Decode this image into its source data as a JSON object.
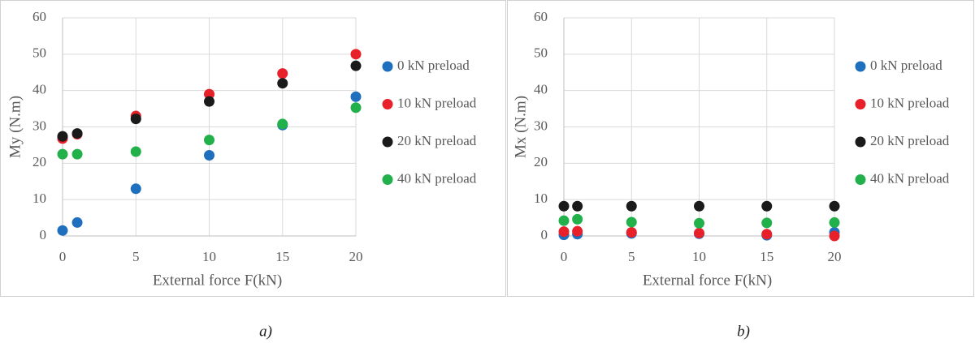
{
  "chart_data": [
    {
      "type": "scatter",
      "caption": "a)",
      "x_label": "External force F(kN)",
      "y_label": "My (N.m)",
      "x": [
        0,
        1,
        5,
        10,
        15,
        20
      ],
      "series": [
        {
          "name": "0 kN preload",
          "color": "#1f6fbf",
          "values": [
            1.5,
            3.7,
            13,
            22.2,
            30.5,
            38.3
          ]
        },
        {
          "name": "10 kN preload",
          "color": "#e8202a",
          "values": [
            26.8,
            28,
            33,
            39,
            44.7,
            50
          ]
        },
        {
          "name": "20 kN preload",
          "color": "#1a1a1a",
          "values": [
            27.4,
            28.2,
            32.2,
            37,
            42,
            46.8
          ]
        },
        {
          "name": "40 kN preload",
          "color": "#22b04b",
          "values": [
            22.5,
            22.5,
            23.2,
            26.4,
            30.8,
            35.3
          ]
        }
      ],
      "xlim": [
        0,
        20
      ],
      "ylim": [
        0,
        60
      ],
      "xticks": [
        0,
        5,
        10,
        15,
        20
      ],
      "yticks": [
        0,
        10,
        20,
        30,
        40,
        50,
        60
      ],
      "grid": true,
      "legend": "right"
    },
    {
      "type": "scatter",
      "caption": "b)",
      "x_label": "External force F(kN)",
      "y_label": "Mx (N.m)",
      "x": [
        0,
        1,
        5,
        10,
        15,
        20
      ],
      "series": [
        {
          "name": "0 kN preload",
          "color": "#1f6fbf",
          "values": [
            0.3,
            0.5,
            0.7,
            0.6,
            0.2,
            1
          ]
        },
        {
          "name": "10 kN preload",
          "color": "#e8202a",
          "values": [
            1.2,
            1.3,
            1,
            0.8,
            0.5,
            0
          ]
        },
        {
          "name": "20 kN preload",
          "color": "#1a1a1a",
          "values": [
            8.2,
            8.2,
            8.2,
            8.2,
            8.2,
            8.2
          ]
        },
        {
          "name": "40 kN preload",
          "color": "#22b04b",
          "values": [
            4.2,
            4.6,
            3.8,
            3.5,
            3.6,
            3.7
          ]
        }
      ],
      "xlim": [
        0,
        20
      ],
      "ylim": [
        0,
        60
      ],
      "xticks": [
        0,
        5,
        10,
        15,
        20
      ],
      "yticks": [
        0,
        10,
        20,
        30,
        40,
        50,
        60
      ],
      "grid": true,
      "legend": "right"
    }
  ]
}
